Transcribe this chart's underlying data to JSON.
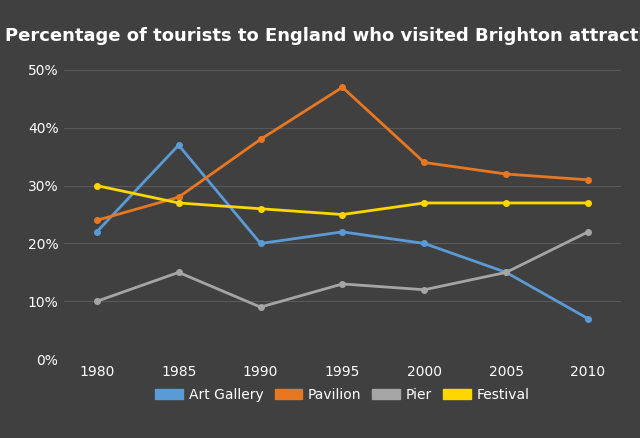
{
  "title": "Percentage of tourists to England who visited Brighton attractions",
  "years": [
    1980,
    1985,
    1990,
    1995,
    2000,
    2005,
    2010
  ],
  "series": {
    "Art Gallery": {
      "values": [
        22,
        37,
        20,
        22,
        20,
        15,
        7
      ],
      "color": "#5B9BD5",
      "marker": "o"
    },
    "Pavilion": {
      "values": [
        24,
        28,
        38,
        47,
        34,
        32,
        31
      ],
      "color": "#E87722",
      "marker": "o"
    },
    "Pier": {
      "values": [
        10,
        15,
        9,
        13,
        12,
        15,
        22
      ],
      "color": "#A5A5A5",
      "marker": "o"
    },
    "Festival": {
      "values": [
        30,
        27,
        26,
        25,
        27,
        27,
        27
      ],
      "color": "#FFD700",
      "marker": "o"
    }
  },
  "ylim": [
    0,
    53
  ],
  "yticks": [
    0,
    10,
    20,
    30,
    40,
    50
  ],
  "ytick_labels": [
    "0%",
    "10%",
    "20%",
    "30%",
    "40%",
    "50%"
  ],
  "background_color": "#404040",
  "plot_bg_color": "#404040",
  "grid_color": "#595959",
  "text_color": "#ffffff",
  "title_fontsize": 13,
  "legend_fontsize": 10,
  "tick_fontsize": 10,
  "xlim": [
    1978,
    2012
  ]
}
